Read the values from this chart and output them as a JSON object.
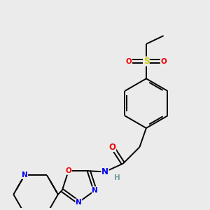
{
  "bg_color": "#ebebeb",
  "bond_color": "#000000",
  "bond_width": 1.4,
  "atom_colors": {
    "N": "#0000ee",
    "O": "#ee0000",
    "S": "#cccc00",
    "C": "#000000",
    "H": "#70a0a0"
  },
  "font_size": 8.5
}
